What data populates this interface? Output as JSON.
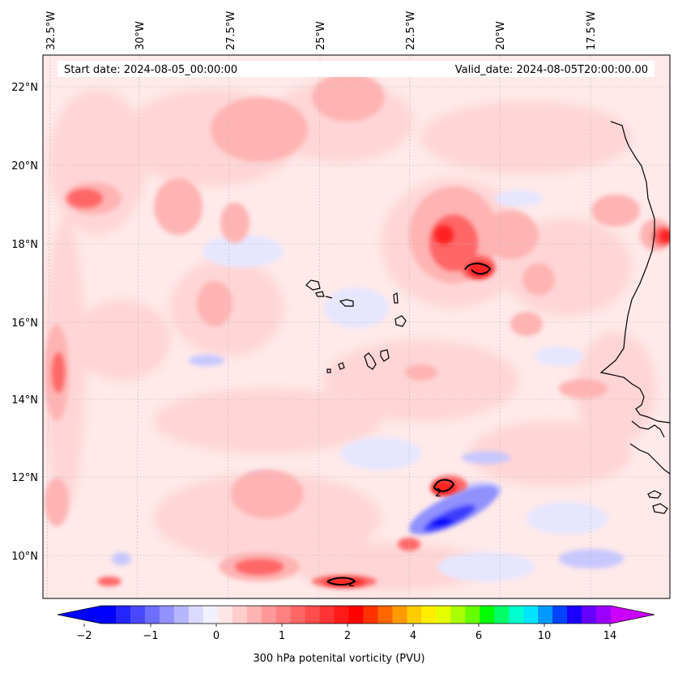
{
  "map": {
    "start_date": "Start date: 2024-08-05_00:00:00",
    "valid_date": "Valid_date: 2024-08-05T20:00:00.00",
    "lon_labels": [
      "32.5°W",
      "30°W",
      "27.5°W",
      "25°W",
      "22.5°W",
      "20°W",
      "17.5°W"
    ],
    "lat_labels": [
      "22°N",
      "20°N",
      "18°N",
      "16°N",
      "14°N",
      "12°N",
      "10°N"
    ],
    "contour_label": "2"
  },
  "colorbar": {
    "title": "300 hPa potenital vorticity (PVU)",
    "tick_labels": [
      "−2",
      "−1",
      "0",
      "1",
      "2",
      "4",
      "6",
      "10",
      "14"
    ],
    "colors": [
      "#0000ff",
      "#2424ff",
      "#4848ff",
      "#6d6dff",
      "#9191ff",
      "#b6b6ff",
      "#dadaff",
      "#f0f0ff",
      "#ffe6e6",
      "#ffcccc",
      "#ffb3b3",
      "#ff9999",
      "#ff8080",
      "#ff6666",
      "#ff4d4d",
      "#ff3333",
      "#ff1a1a",
      "#ff0000",
      "#ff3300",
      "#ff6600",
      "#ff9900",
      "#ffcc00",
      "#ffee00",
      "#e6ff00",
      "#aaff00",
      "#66ff00",
      "#00ff00",
      "#00ff66",
      "#00ffcc",
      "#00e5ff",
      "#0099ff",
      "#0044ff",
      "#1a00ff",
      "#6600ff",
      "#9900ff"
    ],
    "under_color": "#0000ff",
    "over_color": "#cc00ff"
  }
}
